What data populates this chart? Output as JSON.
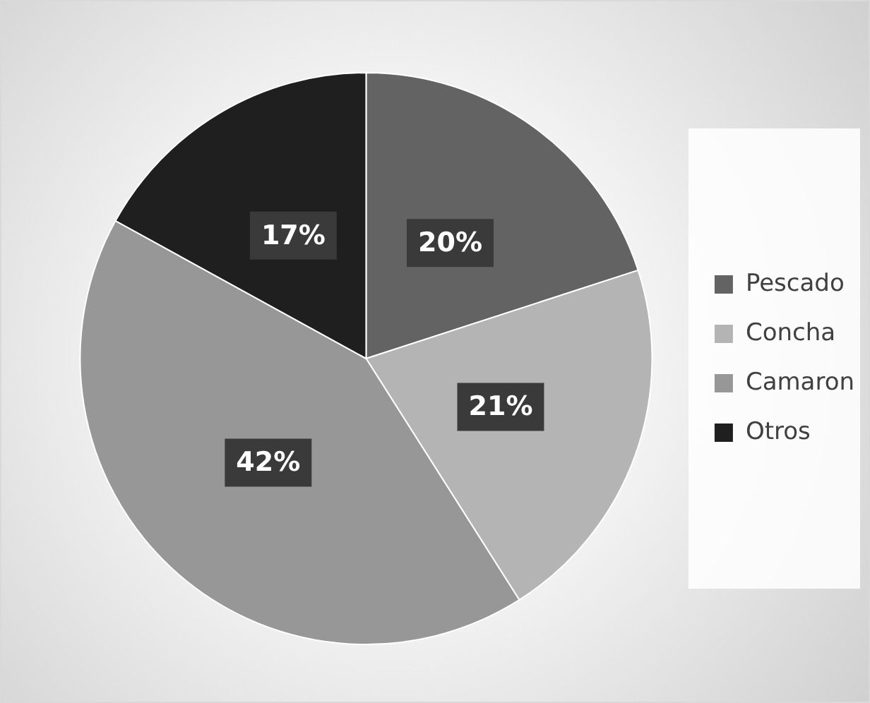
{
  "chart_data": {
    "type": "pie",
    "categories": [
      "Pescado",
      "Concha",
      "Camaron",
      "Otros"
    ],
    "values": [
      20,
      21,
      42,
      17
    ],
    "colors": [
      "#636363",
      "#b4b4b4",
      "#979797",
      "#1f1f1f"
    ],
    "value_labels": [
      "20%",
      "21%",
      "42%",
      "17%"
    ],
    "legend": "right"
  }
}
